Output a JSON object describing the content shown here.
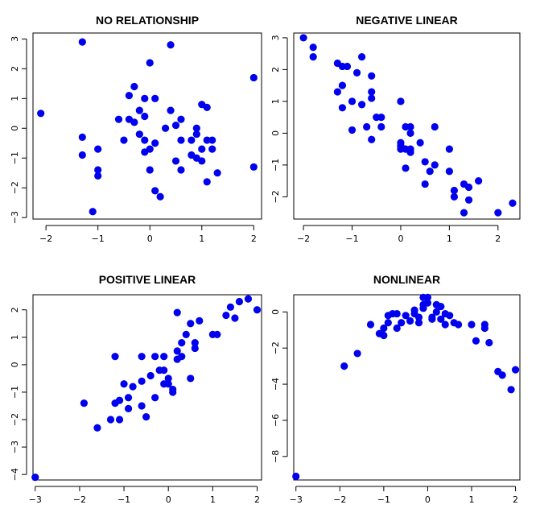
{
  "chart_data": [
    {
      "type": "scatter",
      "title": "NO RELATIONSHIP",
      "xlabel": "",
      "ylabel": "",
      "xlim": [
        -2.25,
        2.15
      ],
      "ylim": [
        -3.05,
        3.2
      ],
      "xticks": [
        -2,
        -1,
        0,
        1,
        2
      ],
      "yticks": [
        -3,
        -2,
        -1,
        0,
        1,
        2,
        3
      ],
      "grid": false,
      "color": "#0000ee",
      "points": [
        [
          -2.1,
          0.5
        ],
        [
          -1.3,
          2.9
        ],
        [
          -1.3,
          -0.3
        ],
        [
          -1.3,
          -0.9
        ],
        [
          -1.1,
          -2.8
        ],
        [
          -1.0,
          -0.7
        ],
        [
          -1.0,
          -1.4
        ],
        [
          -1.0,
          -1.6
        ],
        [
          -0.6,
          0.3
        ],
        [
          -0.5,
          -0.4
        ],
        [
          -0.4,
          1.1
        ],
        [
          -0.4,
          0.3
        ],
        [
          -0.3,
          1.4
        ],
        [
          -0.3,
          0.2
        ],
        [
          -0.2,
          0.6
        ],
        [
          -0.2,
          -0.2
        ],
        [
          -0.1,
          1.0
        ],
        [
          -0.1,
          0.4
        ],
        [
          -0.1,
          -0.4
        ],
        [
          -0.1,
          -0.8
        ],
        [
          0.0,
          2.2
        ],
        [
          0.0,
          -1.4
        ],
        [
          0.0,
          -0.7
        ],
        [
          0.1,
          1.0
        ],
        [
          0.1,
          -0.5
        ],
        [
          0.1,
          -2.1
        ],
        [
          0.2,
          -2.3
        ],
        [
          0.3,
          0.0
        ],
        [
          0.4,
          2.8
        ],
        [
          0.4,
          0.6
        ],
        [
          0.5,
          0.1
        ],
        [
          0.5,
          -1.1
        ],
        [
          0.6,
          0.3
        ],
        [
          0.6,
          -0.4
        ],
        [
          0.6,
          -1.4
        ],
        [
          0.8,
          -0.4
        ],
        [
          0.8,
          -0.9
        ],
        [
          0.9,
          0.0
        ],
        [
          0.9,
          -0.2
        ],
        [
          0.9,
          -1.0
        ],
        [
          1.0,
          0.8
        ],
        [
          1.0,
          -0.7
        ],
        [
          1.0,
          -1.1
        ],
        [
          1.1,
          0.7
        ],
        [
          1.1,
          -0.4
        ],
        [
          1.1,
          -1.8
        ],
        [
          1.2,
          -0.4
        ],
        [
          1.2,
          -0.7
        ],
        [
          1.3,
          -1.5
        ],
        [
          2.0,
          1.7
        ],
        [
          2.0,
          -1.3
        ]
      ]
    },
    {
      "type": "scatter",
      "title": "NEGATIVE LINEAR",
      "xlabel": "",
      "ylabel": "",
      "xlim": [
        -2.2,
        2.45
      ],
      "ylim": [
        -2.7,
        3.15
      ],
      "xticks": [
        -2,
        -1,
        0,
        1,
        2
      ],
      "yticks": [
        -2,
        -1,
        0,
        1,
        2,
        3
      ],
      "grid": false,
      "color": "#0000ee",
      "points": [
        [
          -2.0,
          3.0
        ],
        [
          -1.8,
          2.7
        ],
        [
          -1.8,
          2.4
        ],
        [
          -1.3,
          2.2
        ],
        [
          -1.3,
          1.3
        ],
        [
          -1.2,
          2.1
        ],
        [
          -1.2,
          1.5
        ],
        [
          -1.2,
          0.8
        ],
        [
          -1.1,
          2.1
        ],
        [
          -1.0,
          1.0
        ],
        [
          -1.0,
          0.1
        ],
        [
          -0.9,
          1.9
        ],
        [
          -0.8,
          2.4
        ],
        [
          -0.8,
          0.9
        ],
        [
          -0.7,
          0.2
        ],
        [
          -0.6,
          1.8
        ],
        [
          -0.6,
          1.3
        ],
        [
          -0.6,
          1.1
        ],
        [
          -0.6,
          -0.2
        ],
        [
          -0.5,
          0.5
        ],
        [
          -0.4,
          0.5
        ],
        [
          -0.4,
          0.2
        ],
        [
          0.0,
          1.0
        ],
        [
          0.0,
          -0.3
        ],
        [
          0.0,
          -0.4
        ],
        [
          0.0,
          -0.5
        ],
        [
          0.1,
          0.2
        ],
        [
          0.1,
          -0.5
        ],
        [
          0.1,
          -1.1
        ],
        [
          0.2,
          0.2
        ],
        [
          0.2,
          -0.5
        ],
        [
          0.2,
          -0.6
        ],
        [
          0.2,
          0.0
        ],
        [
          0.4,
          -0.3
        ],
        [
          0.5,
          -0.9
        ],
        [
          0.5,
          -1.6
        ],
        [
          0.6,
          -1.2
        ],
        [
          0.7,
          0.2
        ],
        [
          0.7,
          -1.0
        ],
        [
          1.0,
          -0.5
        ],
        [
          1.0,
          -1.2
        ],
        [
          1.1,
          -1.8
        ],
        [
          1.1,
          -2.0
        ],
        [
          1.3,
          -1.6
        ],
        [
          1.3,
          -2.5
        ],
        [
          1.4,
          -2.1
        ],
        [
          1.4,
          -1.7
        ],
        [
          1.6,
          -1.5
        ],
        [
          2.0,
          -2.5
        ],
        [
          2.3,
          -2.2
        ]
      ]
    },
    {
      "type": "scatter",
      "title": "POSITIVE LINEAR",
      "xlabel": "",
      "ylabel": "",
      "xlim": [
        -3.05,
        2.1
      ],
      "ylim": [
        -4.2,
        2.55
      ],
      "xticks": [
        -3,
        -2,
        -1,
        0,
        1,
        2
      ],
      "yticks": [
        -4,
        -3,
        -2,
        -1,
        0,
        1,
        2
      ],
      "grid": false,
      "color": "#0000ee",
      "points": [
        [
          -3.0,
          -4.1
        ],
        [
          -1.9,
          -1.4
        ],
        [
          -1.6,
          -2.3
        ],
        [
          -1.3,
          -2.0
        ],
        [
          -1.2,
          0.3
        ],
        [
          -1.2,
          -1.4
        ],
        [
          -1.1,
          -2.0
        ],
        [
          -1.1,
          -1.3
        ],
        [
          -1.0,
          -0.7
        ],
        [
          -0.9,
          -1.6
        ],
        [
          -0.9,
          -1.2
        ],
        [
          -0.8,
          -0.8
        ],
        [
          -0.6,
          0.3
        ],
        [
          -0.6,
          -0.6
        ],
        [
          -0.6,
          -1.5
        ],
        [
          -0.5,
          -1.9
        ],
        [
          -0.4,
          -0.4
        ],
        [
          -0.3,
          0.3
        ],
        [
          -0.3,
          -1.2
        ],
        [
          -0.2,
          -0.2
        ],
        [
          -0.1,
          -0.7
        ],
        [
          -0.1,
          -0.2
        ],
        [
          -0.1,
          0.3
        ],
        [
          0.0,
          -0.5
        ],
        [
          0.0,
          -0.7
        ],
        [
          0.1,
          -0.9
        ],
        [
          0.1,
          -1.0
        ],
        [
          0.2,
          1.9
        ],
        [
          0.2,
          0.5
        ],
        [
          0.2,
          0.2
        ],
        [
          0.3,
          0.8
        ],
        [
          0.3,
          0.3
        ],
        [
          0.4,
          1.1
        ],
        [
          0.5,
          1.5
        ],
        [
          0.5,
          -0.5
        ],
        [
          0.6,
          0.6
        ],
        [
          0.6,
          0.8
        ],
        [
          0.7,
          1.6
        ],
        [
          1.0,
          1.1
        ],
        [
          1.1,
          1.1
        ],
        [
          1.3,
          1.8
        ],
        [
          1.4,
          2.1
        ],
        [
          1.5,
          1.7
        ],
        [
          1.6,
          2.3
        ],
        [
          1.8,
          2.4
        ],
        [
          2.0,
          2.0
        ]
      ]
    },
    {
      "type": "scatter",
      "title": "NONLINEAR",
      "xlabel": "",
      "ylabel": "",
      "xlim": [
        -3.05,
        2.1
      ],
      "ylim": [
        -9.3,
        0.95
      ],
      "xticks": [
        -3,
        -2,
        -1,
        0,
        1,
        2
      ],
      "yticks": [
        -8,
        -6,
        -4,
        -2,
        0
      ],
      "grid": false,
      "color": "#0000ee",
      "points": [
        [
          -3.0,
          -9.1
        ],
        [
          -1.9,
          -3.0
        ],
        [
          -1.6,
          -2.3
        ],
        [
          -1.3,
          -0.7
        ],
        [
          -1.1,
          -1.2
        ],
        [
          -1.0,
          -0.9
        ],
        [
          -1.0,
          -1.3
        ],
        [
          -0.9,
          -0.6
        ],
        [
          -0.9,
          -0.2
        ],
        [
          -0.8,
          -0.1
        ],
        [
          -0.7,
          -0.9
        ],
        [
          -0.7,
          -0.1
        ],
        [
          -0.6,
          -0.6
        ],
        [
          -0.5,
          -0.2
        ],
        [
          -0.4,
          -0.5
        ],
        [
          -0.3,
          -0.1
        ],
        [
          -0.3,
          0.1
        ],
        [
          -0.2,
          -0.6
        ],
        [
          -0.2,
          -0.3
        ],
        [
          -0.1,
          0.8
        ],
        [
          -0.1,
          0.4
        ],
        [
          -0.1,
          0.2
        ],
        [
          0.0,
          0.8
        ],
        [
          0.0,
          0.5
        ],
        [
          0.1,
          -0.3
        ],
        [
          0.1,
          -0.4
        ],
        [
          0.2,
          0.4
        ],
        [
          0.2,
          0.0
        ],
        [
          0.3,
          0.3
        ],
        [
          0.3,
          -0.4
        ],
        [
          0.4,
          -0.1
        ],
        [
          0.4,
          -0.7
        ],
        [
          0.5,
          -0.2
        ],
        [
          0.6,
          -0.6
        ],
        [
          0.7,
          -0.7
        ],
        [
          1.0,
          -0.7
        ],
        [
          1.1,
          -1.6
        ],
        [
          1.3,
          -0.7
        ],
        [
          1.3,
          -0.9
        ],
        [
          1.4,
          -1.7
        ],
        [
          1.6,
          -3.3
        ],
        [
          1.7,
          -3.5
        ],
        [
          1.9,
          -4.3
        ],
        [
          2.0,
          -3.2
        ]
      ]
    }
  ]
}
